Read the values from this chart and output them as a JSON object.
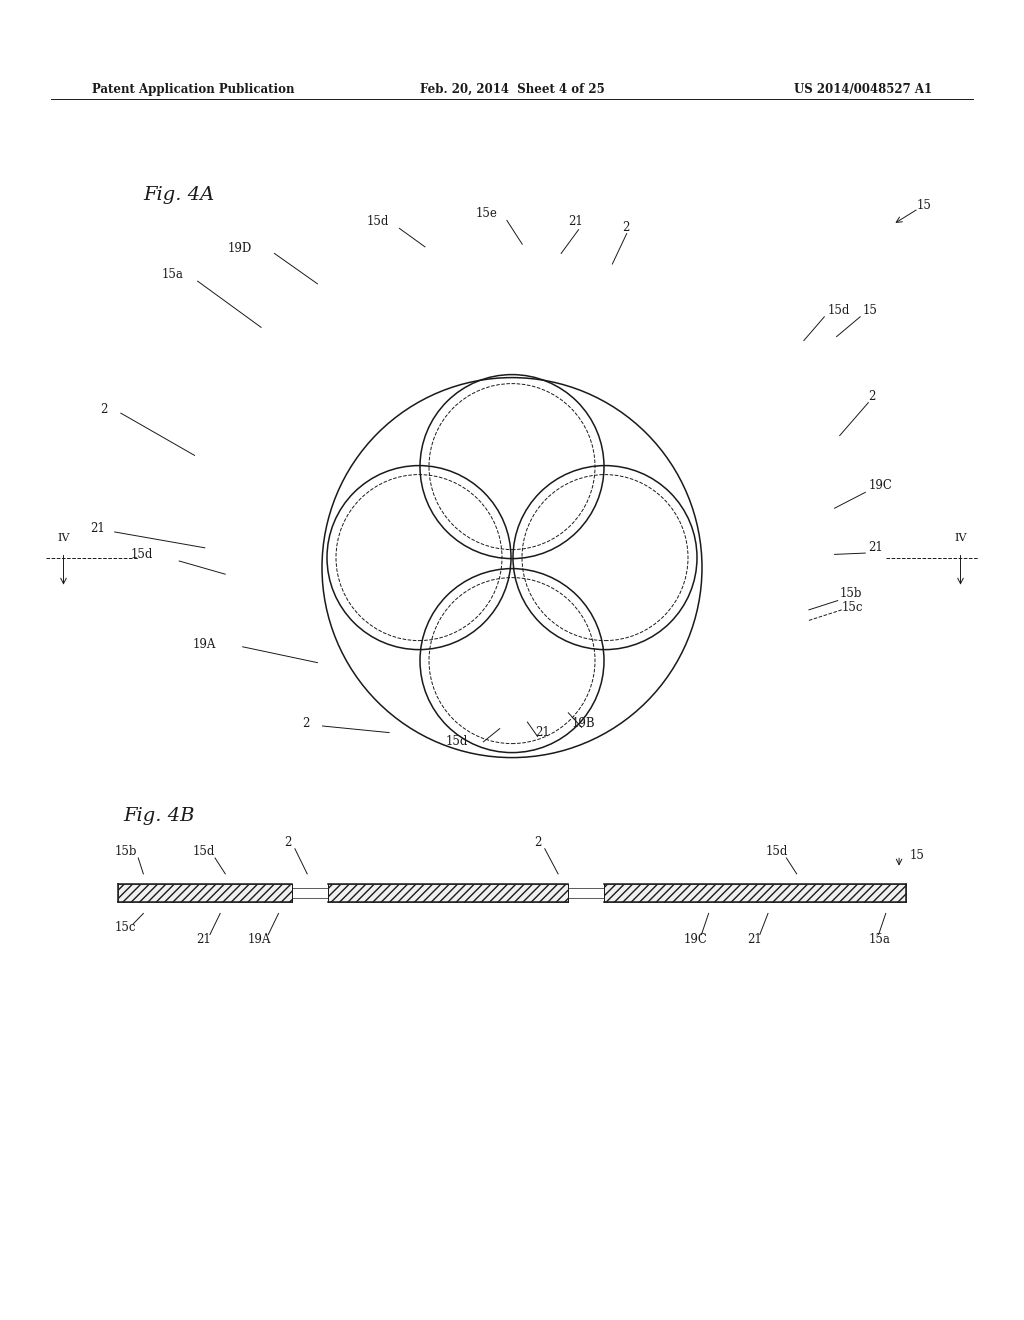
{
  "header_left": "Patent Application Publication",
  "header_mid": "Feb. 20, 2014  Sheet 4 of 25",
  "header_right": "US 2014/0048527 A1",
  "fig4a_label": "Fig. 4A",
  "fig4b_label": "Fig. 4B",
  "bg_color": "#ffffff",
  "line_color": "#1a1a1a"
}
